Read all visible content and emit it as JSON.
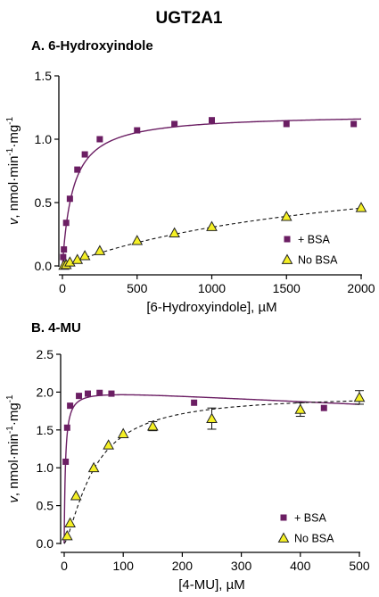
{
  "figure": {
    "title": "UGT2A1"
  },
  "colors": {
    "bsa": "#6b1e63",
    "no_bsa_fill": "#f5f025",
    "no_bsa_stroke": "#222222"
  },
  "chart_data": [
    {
      "type": "scatter",
      "title": "A. 6-Hydroxyindole",
      "xlabel": "[6-Hydroxyindole], µM",
      "ylabel": {
        "v": "v",
        "rest": ", nmol·min",
        "sup1": "-1",
        "mid": "·mg",
        "sup2": "-1"
      },
      "xlim": [
        0,
        2000
      ],
      "ylim": [
        0,
        1.5
      ],
      "xticks": [
        0,
        500,
        1000,
        1500,
        2000
      ],
      "yticks": [
        0.0,
        0.5,
        1.0,
        1.5
      ],
      "ytick_labels": [
        "0.0",
        "0.5",
        "1.0",
        "1.5"
      ],
      "legend_position": "bottom-right",
      "series": [
        {
          "name": "+ BSA",
          "marker": "square",
          "line": "solid",
          "x": [
            5,
            10,
            25,
            50,
            100,
            150,
            250,
            500,
            750,
            1000,
            1500,
            1950
          ],
          "y": [
            0.07,
            0.13,
            0.34,
            0.53,
            0.76,
            0.88,
            1.0,
            1.07,
            1.12,
            1.15,
            1.12,
            1.12
          ],
          "fit": {
            "model": "michaelis-menten",
            "vmax": 1.2,
            "km": 70
          }
        },
        {
          "name": "No BSA",
          "marker": "triangle",
          "line": "dashed",
          "x": [
            10,
            25,
            50,
            100,
            150,
            250,
            500,
            750,
            1000,
            1500,
            2000
          ],
          "y": [
            0.005,
            0.01,
            0.03,
            0.05,
            0.08,
            0.12,
            0.2,
            0.26,
            0.31,
            0.39,
            0.46
          ],
          "fit": {
            "model": "michaelis-menten",
            "vmax": 0.9,
            "km": 1950
          }
        }
      ]
    },
    {
      "type": "scatter",
      "title": "B. 4-MU",
      "xlabel": "[4-MU], µM",
      "ylabel": {
        "v": "v",
        "rest": ", nmol·min",
        "sup1": "-1",
        "mid": "·mg",
        "sup2": "-1"
      },
      "xlim": [
        0,
        500
      ],
      "ylim": [
        0,
        2.5
      ],
      "xticks": [
        0,
        100,
        200,
        300,
        400,
        500
      ],
      "yticks": [
        0.0,
        0.5,
        1.0,
        1.5,
        2.0,
        2.5
      ],
      "ytick_labels": [
        "0.0",
        "0.5",
        "1.0",
        "1.5",
        "2.0",
        "2.5"
      ],
      "legend_position": "bottom-right",
      "series": [
        {
          "name": "+ BSA",
          "marker": "square",
          "line": "solid",
          "x": [
            2.5,
            5,
            10,
            25,
            40,
            60,
            80,
            220,
            440
          ],
          "y": [
            1.08,
            1.53,
            1.82,
            1.95,
            1.98,
            1.99,
            1.98,
            1.86,
            1.79
          ],
          "fit": {
            "model": "substrate-inhibition",
            "vmax": 2.05,
            "km": 2.1,
            "ksi": 4500
          }
        },
        {
          "name": "No BSA",
          "marker": "triangle",
          "line": "dashed",
          "x": [
            5,
            10,
            20,
            50,
            75,
            100,
            150,
            250,
            400,
            500
          ],
          "y": [
            0.1,
            0.27,
            0.63,
            1.0,
            1.3,
            1.45,
            1.55,
            1.65,
            1.77,
            1.93
          ],
          "yerr": [
            0,
            0,
            0,
            0,
            0,
            0,
            0.06,
            0.14,
            0.09,
            0.09
          ],
          "fit": {
            "model": "hill",
            "vmax": 1.96,
            "k": 50,
            "n": 1.4
          }
        }
      ]
    }
  ]
}
